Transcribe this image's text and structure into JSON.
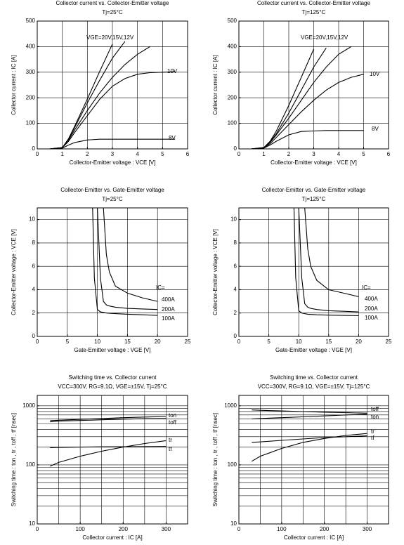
{
  "chart_data": [
    {
      "type": "line",
      "title": "Collector current vs. Collector-Emitter voltage",
      "subtitle": "Tj=25°C",
      "x_label": "Collector-Emitter voltage : VCE [V]",
      "y_label": "Collector current : IC [A]",
      "x": [
        0,
        0.5,
        1,
        1.25,
        1.5,
        2,
        2.5,
        3,
        3.5,
        4,
        4.5,
        5,
        5.5
      ],
      "series": [
        {
          "color": "#000000",
          "values": [
            0,
            0,
            5,
            40,
            90,
            195,
            305,
            410,
            null,
            null,
            null,
            null,
            null
          ]
        },
        {
          "color": "#000000",
          "values": [
            0,
            0,
            5,
            38,
            85,
            180,
            270,
            355,
            420,
            null,
            null,
            null,
            null
          ]
        },
        {
          "color": "#000000",
          "values": [
            0,
            0,
            5,
            35,
            75,
            150,
            220,
            280,
            330,
            370,
            400,
            null,
            null
          ]
        },
        {
          "color": "#000000",
          "values": [
            0,
            0,
            5,
            30,
            65,
            130,
            195,
            245,
            275,
            292,
            298,
            300,
            302
          ]
        },
        {
          "color": "#000000",
          "values": [
            0,
            0,
            3,
            15,
            25,
            35,
            38,
            38,
            38,
            38,
            38,
            38,
            38
          ]
        }
      ],
      "annotations": [
        "VGE=20V,15V,12V",
        "10V",
        "8V"
      ],
      "xlim": [
        0,
        6
      ],
      "xticks": [
        0,
        1,
        2,
        3,
        4,
        5,
        6
      ],
      "ylim": [
        0,
        500
      ],
      "yticks": [
        0,
        100,
        200,
        300,
        400,
        500
      ],
      "xgrid": [
        1,
        2,
        3,
        4,
        5
      ],
      "ygrid": [
        100,
        200,
        300,
        400
      ],
      "log_y": false
    },
    {
      "type": "line",
      "title": "Collector current vs. Collector-Emitter voltage",
      "subtitle": "Tj=125°C",
      "x_label": "Collector-Emitter voltage : VCE [V]",
      "y_label": "Collector current : IC [A]",
      "x": [
        0,
        0.5,
        1,
        1.25,
        1.5,
        2,
        2.5,
        3,
        3.5,
        4,
        4.5,
        5,
        5.5
      ],
      "series": [
        {
          "color": "#000000",
          "values": [
            0,
            0,
            5,
            30,
            70,
            170,
            280,
            390,
            null,
            null,
            null,
            null,
            null
          ]
        },
        {
          "color": "#000000",
          "values": [
            0,
            0,
            5,
            28,
            60,
            140,
            230,
            320,
            395,
            null,
            null,
            null,
            null
          ]
        },
        {
          "color": "#000000",
          "values": [
            0,
            0,
            5,
            25,
            55,
            120,
            190,
            260,
            320,
            370,
            400,
            null,
            null
          ]
        },
        {
          "color": "#000000",
          "values": [
            0,
            0,
            5,
            20,
            45,
            95,
            145,
            190,
            230,
            260,
            280,
            292,
            null
          ]
        },
        {
          "color": "#000000",
          "values": [
            0,
            0,
            3,
            15,
            30,
            55,
            68,
            70,
            72,
            72,
            72,
            72,
            null
          ]
        }
      ],
      "annotations": [
        "VGE=20V,15V,12V",
        "10V",
        "8V"
      ],
      "xlim": [
        0,
        6
      ],
      "xticks": [
        0,
        1,
        2,
        3,
        4,
        5,
        6
      ],
      "ylim": [
        0,
        500
      ],
      "yticks": [
        0,
        100,
        200,
        300,
        400,
        500
      ],
      "xgrid": [
        1,
        2,
        3,
        4,
        5
      ],
      "ygrid": [
        100,
        200,
        300,
        400
      ],
      "log_y": false
    },
    {
      "type": "line",
      "title": "Collector-Emitter vs. Gate-Emitter voltage",
      "subtitle": "Tj=25°C",
      "x_label": "Gate-Emitter voltage : VGE [V]",
      "y_label": "Collector-Emitter voltage : VCE [V]",
      "x": [
        9.2,
        9.5,
        10,
        10.5,
        11,
        11.5,
        12,
        13,
        15,
        17.5,
        20
      ],
      "series": [
        {
          "color": "#000000",
          "values": [
            null,
            null,
            null,
            null,
            11,
            7,
            5.5,
            4.3,
            3.7,
            3.3,
            3.0
          ]
        },
        {
          "color": "#000000",
          "values": [
            null,
            null,
            11,
            5,
            3.0,
            2.7,
            2.6,
            2.5,
            2.4,
            2.35,
            2.3
          ]
        },
        {
          "color": "#000000",
          "values": [
            11,
            5,
            2.3,
            2.1,
            2.05,
            2.0,
            1.98,
            1.95,
            1.9,
            1.85,
            1.8
          ]
        }
      ],
      "annotations": [
        "IC=",
        "400A",
        "200A",
        "100A"
      ],
      "xlim": [
        0,
        25
      ],
      "xticks": [
        0,
        5,
        10,
        15,
        20,
        25
      ],
      "ylim": [
        0,
        11
      ],
      "yticks": [
        0,
        2,
        4,
        6,
        8,
        10
      ],
      "xgrid": [
        5,
        10,
        15,
        20
      ],
      "ygrid": [
        2,
        4,
        6,
        8,
        10
      ],
      "log_y": false
    },
    {
      "type": "line",
      "title": "Collector-Emitter vs. Gate-Emitter voltage",
      "subtitle": "Tj=125°C",
      "x_label": "Gate-Emitter voltage : VGE [V]",
      "y_label": "Collector-Emitter voltage : VCE [V]",
      "x": [
        9.2,
        9.5,
        10,
        10.5,
        11,
        11.5,
        12,
        13,
        15,
        17.5,
        20
      ],
      "series": [
        {
          "color": "#000000",
          "values": [
            null,
            null,
            null,
            null,
            11,
            7.5,
            6,
            4.8,
            4.0,
            3.7,
            3.4
          ]
        },
        {
          "color": "#000000",
          "values": [
            null,
            null,
            11,
            5,
            2.8,
            2.5,
            2.4,
            2.3,
            2.2,
            2.15,
            2.1
          ]
        },
        {
          "color": "#000000",
          "values": [
            11,
            5,
            2.2,
            2.0,
            1.95,
            1.9,
            1.88,
            1.85,
            1.82,
            1.8,
            1.78
          ]
        }
      ],
      "annotations": [
        "IC=",
        "400A",
        "200A",
        "100A"
      ],
      "xlim": [
        0,
        25
      ],
      "xticks": [
        0,
        5,
        10,
        15,
        20,
        25
      ],
      "ylim": [
        0,
        11
      ],
      "yticks": [
        0,
        2,
        4,
        6,
        8,
        10
      ],
      "xgrid": [
        5,
        10,
        15,
        20
      ],
      "ygrid": [
        2,
        4,
        6,
        8,
        10
      ],
      "log_y": false
    },
    {
      "type": "line",
      "title": "Switching time vs. Collector current",
      "subtitle": "VCC=300V, RG=9.1Ω, VGE=±15V, Tj=25°C",
      "x_label": "Collector current : IC [A]",
      "y_label": "Switching time : ton , tr , toff , tf [nsec]",
      "x": [
        30,
        50,
        100,
        150,
        200,
        250,
        300
      ],
      "series": [
        {
          "color": "#000000",
          "values": [
            560,
            570,
            590,
            610,
            630,
            645,
            660
          ]
        },
        {
          "color": "#000000",
          "values": [
            540,
            550,
            565,
            580,
            595,
            605,
            610
          ]
        },
        {
          "color": "#000000",
          "values": [
            195,
            197,
            200,
            202,
            203,
            204,
            205
          ]
        },
        {
          "color": "#000000",
          "values": [
            95,
            110,
            140,
            170,
            200,
            230,
            257
          ]
        }
      ],
      "annotations": [
        "ton",
        "toff",
        "tr",
        "tf"
      ],
      "xlim": [
        0,
        350
      ],
      "xticks": [
        0,
        100,
        200,
        300
      ],
      "ylim": [
        10,
        1500
      ],
      "yticks": [
        10,
        100,
        1000
      ],
      "xgrid": [
        50,
        100,
        150,
        200,
        250,
        300
      ],
      "ygrid": [
        20,
        30,
        40,
        50,
        60,
        70,
        80,
        90,
        100,
        200,
        300,
        400,
        500,
        600,
        700,
        800,
        900,
        1000
      ],
      "log_y": true
    },
    {
      "type": "line",
      "title": "Switching time vs. Collector current",
      "subtitle": "VCC=300V, RG=9.1Ω, VGE=±15V, Tj=125°C",
      "x_label": "Collector current : IC [A]",
      "y_label": "Switching time : ton , tr , toff , tf [nsec]",
      "x": [
        30,
        50,
        100,
        150,
        200,
        250,
        300
      ],
      "series": [
        {
          "color": "#000000",
          "values": [
            850,
            840,
            820,
            800,
            780,
            765,
            750
          ]
        },
        {
          "color": "#000000",
          "values": [
            600,
            610,
            630,
            650,
            675,
            700,
            720
          ]
        },
        {
          "color": "#000000",
          "values": [
            240,
            245,
            260,
            275,
            290,
            300,
            310
          ]
        },
        {
          "color": "#000000",
          "values": [
            115,
            140,
            190,
            240,
            280,
            315,
            340
          ]
        }
      ],
      "annotations": [
        "toff",
        "ton",
        "tr",
        "tf"
      ],
      "xlim": [
        0,
        350
      ],
      "xticks": [
        0,
        100,
        200,
        300
      ],
      "ylim": [
        10,
        1500
      ],
      "yticks": [
        10,
        100,
        1000
      ],
      "xgrid": [
        50,
        100,
        150,
        200,
        250,
        300
      ],
      "ygrid": [
        20,
        30,
        40,
        50,
        60,
        70,
        80,
        90,
        100,
        200,
        300,
        400,
        500,
        600,
        700,
        800,
        900,
        1000
      ],
      "log_y": true
    }
  ]
}
